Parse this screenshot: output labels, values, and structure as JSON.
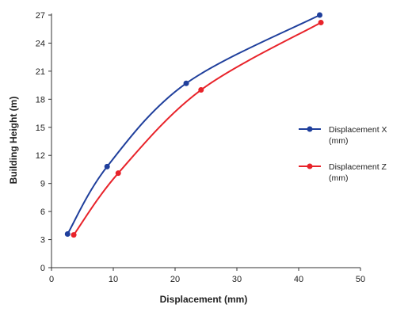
{
  "chart_data": {
    "type": "line",
    "title": "",
    "xlabel": "Displacement (mm)",
    "ylabel": "Building Height (m)",
    "xlim": [
      0,
      50
    ],
    "ylim": [
      0,
      27
    ],
    "x_ticks": [
      0,
      10,
      20,
      30,
      40,
      50
    ],
    "y_ticks": [
      0,
      3,
      6,
      9,
      12,
      15,
      18,
      21,
      24,
      27
    ],
    "grid": false,
    "legend_position": "right",
    "series": [
      {
        "name": "Displacement X (mm)",
        "label_lines": [
          "Displacement X",
          "(mm)"
        ],
        "color": "#1f3f9c",
        "points": [
          {
            "x": 2.6,
            "y": 3.6
          },
          {
            "x": 9.0,
            "y": 10.8
          },
          {
            "x": 21.8,
            "y": 19.7
          },
          {
            "x": 43.4,
            "y": 27.0
          }
        ]
      },
      {
        "name": "Displacement Z (mm)",
        "label_lines": [
          "Displacement Z",
          "(mm)"
        ],
        "color": "#e8232a",
        "points": [
          {
            "x": 3.6,
            "y": 3.5
          },
          {
            "x": 10.8,
            "y": 10.1
          },
          {
            "x": 24.2,
            "y": 19.0
          },
          {
            "x": 43.6,
            "y": 26.2
          }
        ]
      }
    ]
  }
}
